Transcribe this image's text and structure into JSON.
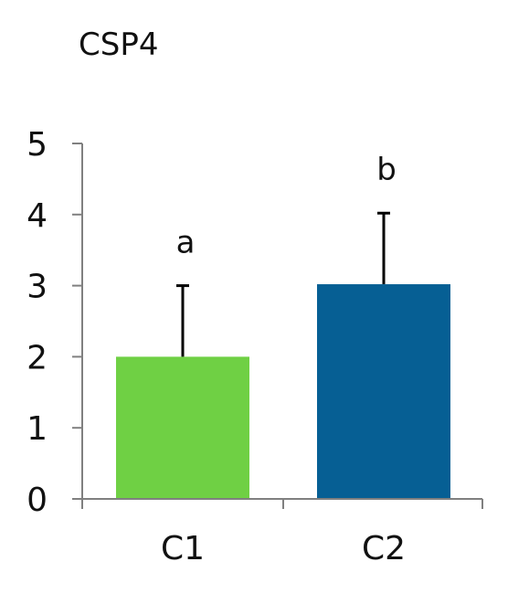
{
  "chart_data": {
    "type": "bar",
    "title": "CSP4",
    "xlabel": "",
    "ylabel": "",
    "categories": [
      "C1",
      "C2"
    ],
    "values": [
      2.0,
      3.02
    ],
    "error_upper": [
      1.0,
      1.0
    ],
    "significance_labels": [
      "a",
      "b"
    ],
    "bar_colors": [
      "#6fd044",
      "#065f94"
    ],
    "ylim": [
      0,
      5
    ],
    "yticks": [
      "0",
      "1",
      "2",
      "3",
      "4",
      "5"
    ],
    "grid": false,
    "legend": "none"
  }
}
